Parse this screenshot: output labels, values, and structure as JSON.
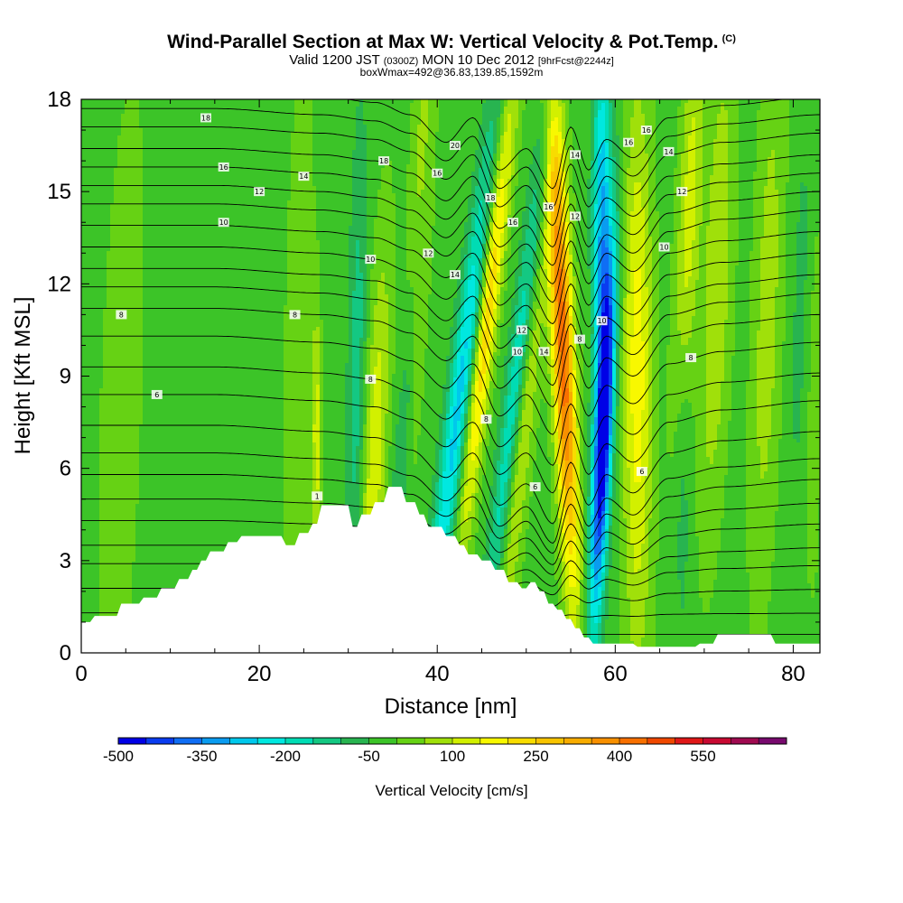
{
  "title": {
    "main": "Wind-Parallel Section at Max W: Vertical Velocity & Pot.Temp.",
    "main_tag": "(C)",
    "valid_prefix": "Valid 1200 JST",
    "valid_utc": "(0300Z)",
    "valid_suffix": "MON 10 Dec 2012",
    "forecast": "[9hrFcst@2244z]",
    "box": "boxWmax=492@36.83,139.85,1592m"
  },
  "chart_data": {
    "type": "heatmap",
    "xlabel": "Distance [nm]",
    "ylabel": "Height [Kft MSL]",
    "xlim": [
      0,
      83
    ],
    "ylim": [
      0,
      18
    ],
    "x_ticks": [
      0,
      20,
      40,
      60,
      80
    ],
    "y_ticks": [
      0,
      3,
      6,
      9,
      12,
      15,
      18
    ],
    "colorbar_label": "Vertical Velocity [cm/s]",
    "colorbar_ticks": [
      -500,
      -350,
      -200,
      -50,
      100,
      250,
      400,
      550
    ],
    "colorbar_min": -500,
    "colorbar_max": 650,
    "colorbar_step": 50,
    "colors": [
      "#0000e6",
      "#0a3cf0",
      "#0f6ef5",
      "#0a9cf0",
      "#00c8ec",
      "#00e8e0",
      "#00dcb4",
      "#14c882",
      "#28b450",
      "#3cc428",
      "#66d214",
      "#a0e00a",
      "#d2f000",
      "#f8f800",
      "#f8dc00",
      "#f8c400",
      "#f8ac00",
      "#f89000",
      "#f87000",
      "#f04800",
      "#e01818",
      "#c80a32",
      "#a00a50",
      "#780a6e"
    ],
    "terrain_profile": [
      [
        0,
        1.0
      ],
      [
        1,
        1.0
      ],
      [
        1.5,
        1.2
      ],
      [
        4,
        1.2
      ],
      [
        4.5,
        1.6
      ],
      [
        6.5,
        1.6
      ],
      [
        7,
        1.8
      ],
      [
        8.5,
        1.8
      ],
      [
        9,
        2.1
      ],
      [
        10.5,
        2.1
      ],
      [
        11,
        2.4
      ],
      [
        12,
        2.4
      ],
      [
        12.5,
        2.7
      ],
      [
        13,
        2.7
      ],
      [
        13.5,
        3.0
      ],
      [
        14,
        3.0
      ],
      [
        14.5,
        3.3
      ],
      [
        16,
        3.3
      ],
      [
        16.5,
        3.6
      ],
      [
        17.5,
        3.6
      ],
      [
        18,
        3.8
      ],
      [
        22.5,
        3.8
      ],
      [
        23,
        3.5
      ],
      [
        24,
        3.5
      ],
      [
        24.5,
        3.9
      ],
      [
        25.5,
        3.9
      ],
      [
        26,
        4.2
      ],
      [
        26.5,
        4.2
      ],
      [
        27,
        4.8
      ],
      [
        30,
        4.8
      ],
      [
        30.5,
        4.1
      ],
      [
        31,
        4.1
      ],
      [
        31.5,
        4.5
      ],
      [
        32.5,
        4.5
      ],
      [
        33,
        4.9
      ],
      [
        34,
        4.9
      ],
      [
        34.5,
        5.4
      ],
      [
        36,
        5.4
      ],
      [
        36.5,
        4.9
      ],
      [
        37.5,
        4.9
      ],
      [
        38,
        4.5
      ],
      [
        38.5,
        4.5
      ],
      [
        39,
        4.1
      ],
      [
        40.5,
        4.1
      ],
      [
        41,
        3.8
      ],
      [
        42,
        3.8
      ],
      [
        42.5,
        3.5
      ],
      [
        43,
        3.5
      ],
      [
        43.5,
        3.2
      ],
      [
        44.5,
        3.2
      ],
      [
        45,
        3.0
      ],
      [
        46,
        3.0
      ],
      [
        46.5,
        2.7
      ],
      [
        47.5,
        2.7
      ],
      [
        48,
        2.3
      ],
      [
        49,
        2.3
      ],
      [
        49.5,
        2.1
      ],
      [
        50,
        2.1
      ],
      [
        50.5,
        2.3
      ],
      [
        51,
        2.3
      ],
      [
        51.5,
        2.0
      ],
      [
        52,
        2.0
      ],
      [
        52.5,
        1.6
      ],
      [
        53,
        1.6
      ],
      [
        53.5,
        1.4
      ],
      [
        54,
        1.4
      ],
      [
        54.5,
        1.1
      ],
      [
        55,
        1.1
      ],
      [
        55.5,
        0.8
      ],
      [
        56,
        0.8
      ],
      [
        56.5,
        0.5
      ],
      [
        57,
        0.5
      ],
      [
        57.5,
        0.3
      ],
      [
        58,
        0.3
      ],
      [
        58.5,
        0.3
      ],
      [
        62,
        0.3
      ],
      [
        62.5,
        0.2
      ],
      [
        69,
        0.2
      ],
      [
        69.5,
        0.3
      ],
      [
        71,
        0.3
      ],
      [
        71.5,
        0.6
      ],
      [
        77.5,
        0.6
      ],
      [
        78,
        0.3
      ],
      [
        83,
        0.3
      ],
      [
        83,
        0
      ],
      [
        0,
        0
      ]
    ],
    "w_field": {
      "background": -20,
      "features": [
        {
          "x0": 3.5,
          "dxdz": 0.12,
          "sigma": 2.2,
          "amp": 60,
          "zc": 8,
          "zw": 10
        },
        {
          "x0": 24.0,
          "dxdz": 0.05,
          "sigma": 1.6,
          "amp": 60,
          "zc": 9,
          "zw": 10
        },
        {
          "x0": 26.5,
          "dxdz": 0.0,
          "sigma": 0.6,
          "amp": 140,
          "zc": 7,
          "zw": 4
        },
        {
          "x0": 27.5,
          "dxdz": 0.0,
          "sigma": 0.6,
          "amp": -30,
          "zc": 11,
          "zw": 6
        },
        {
          "x0": 30.5,
          "dxdz": 0.05,
          "sigma": 1.0,
          "amp": -110,
          "zc": 9,
          "zw": 8
        },
        {
          "x0": 32.0,
          "dxdz": 0.15,
          "sigma": 1.3,
          "amp": 160,
          "zc": 6,
          "zw": 7
        },
        {
          "x0": 34.5,
          "dxdz": 0.25,
          "sigma": 1.0,
          "amp": -120,
          "zc": 9,
          "zw": 9
        },
        {
          "x0": 35.5,
          "dxdz": 0.18,
          "sigma": 1.2,
          "amp": 150,
          "zc": 14,
          "zw": 8
        },
        {
          "x0": 39.0,
          "dxdz": 0.42,
          "sigma": 1.3,
          "amp": -250,
          "zc": 8,
          "zw": 9
        },
        {
          "x0": 41.5,
          "dxdz": 0.38,
          "sigma": 1.1,
          "amp": 260,
          "zc": 11,
          "zw": 8
        },
        {
          "x0": 45.5,
          "dxdz": 0.4,
          "sigma": 1.2,
          "amp": -250,
          "zc": 10,
          "zw": 10
        },
        {
          "x0": 47.0,
          "dxdz": 0.33,
          "sigma": 1.3,
          "amp": 180,
          "zc": 9,
          "zw": 10
        },
        {
          "x0": 55.5,
          "dxdz": -0.14,
          "sigma": 1.2,
          "amp": 460,
          "zc": 10,
          "zw": 8
        },
        {
          "x0": 57.5,
          "dxdz": 0.16,
          "sigma": 1.0,
          "amp": -500,
          "zc": 7,
          "zw": 6
        },
        {
          "x0": 58.5,
          "dxdz": 0.0,
          "sigma": 1.0,
          "amp": -280,
          "zc": 14,
          "zw": 6
        },
        {
          "x0": 62.5,
          "dxdz": 0.0,
          "sigma": 1.6,
          "amp": 200,
          "zc": 9,
          "zw": 9
        },
        {
          "x0": 66.0,
          "dxdz": 0.16,
          "sigma": 1.3,
          "amp": 150,
          "zc": 14,
          "zw": 7
        },
        {
          "x0": 70.0,
          "dxdz": 0.12,
          "sigma": 1.6,
          "amp": 120,
          "zc": 12,
          "zw": 8
        },
        {
          "x0": 76.0,
          "dxdz": 0.1,
          "sigma": 1.6,
          "amp": 100,
          "zc": 11,
          "zw": 9
        },
        {
          "x0": 80.0,
          "dxdz": 0.1,
          "sigma": 1.2,
          "amp": -80,
          "zc": 13,
          "zw": 8
        },
        {
          "x0": 82.0,
          "dxdz": 0.0,
          "sigma": 1.3,
          "amp": 60,
          "zc": 12,
          "zw": 10
        },
        {
          "x0": 67.5,
          "dxdz": 0.0,
          "sigma": 1.0,
          "amp": -60,
          "zc": 6,
          "zw": 6
        }
      ]
    },
    "theta_contours": {
      "base_levels": [
        -1.5,
        -1.1,
        -0.6,
        0.1,
        0.6,
        1.3,
        2.1,
        2.9,
        3.5,
        4.3,
        5.0,
        5.8,
        6.5,
        7.4,
        8.4,
        9.3,
        10.3,
        11.2,
        11.9,
        12.5,
        13.2,
        13.9,
        14.6,
        15.2,
        15.8,
        16.4,
        17.1,
        17.7,
        18.3
      ],
      "wave_displacement": [
        [
          0,
          0.0
        ],
        [
          15,
          0.0
        ],
        [
          27,
          -0.2
        ],
        [
          33,
          -0.4
        ],
        [
          37,
          -0.8
        ],
        [
          41,
          -1.7
        ],
        [
          44,
          -0.9
        ],
        [
          47,
          -2.6
        ],
        [
          50,
          -1.9
        ],
        [
          53,
          -3.2
        ],
        [
          55,
          -1.2
        ],
        [
          57,
          -2.6
        ],
        [
          59,
          -1.6
        ],
        [
          62,
          -2.2
        ],
        [
          66,
          -0.9
        ],
        [
          72,
          -0.5
        ],
        [
          83,
          -0.2
        ]
      ],
      "labels": [
        {
          "text": "18",
          "x": 14,
          "z": 17.4
        },
        {
          "text": "16",
          "x": 16,
          "z": 15.8
        },
        {
          "text": "14",
          "x": 25,
          "z": 15.5
        },
        {
          "text": "12",
          "x": 20,
          "z": 15.0
        },
        {
          "text": "10",
          "x": 16,
          "z": 14.0
        },
        {
          "text": "8",
          "x": 4.5,
          "z": 11.0
        },
        {
          "text": "8",
          "x": 24,
          "z": 11.0
        },
        {
          "text": "6",
          "x": 8.5,
          "z": 8.4
        },
        {
          "text": "18",
          "x": 34,
          "z": 16.0
        },
        {
          "text": "16",
          "x": 40,
          "z": 15.6
        },
        {
          "text": "20",
          "x": 42,
          "z": 16.5
        },
        {
          "text": "18",
          "x": 46,
          "z": 14.8
        },
        {
          "text": "16",
          "x": 48.5,
          "z": 14.0
        },
        {
          "text": "14",
          "x": 42,
          "z": 12.3
        },
        {
          "text": "12",
          "x": 39,
          "z": 13.0
        },
        {
          "text": "10",
          "x": 32.5,
          "z": 12.8
        },
        {
          "text": "8",
          "x": 32.5,
          "z": 8.9
        },
        {
          "text": "12",
          "x": 49.5,
          "z": 10.5
        },
        {
          "text": "10",
          "x": 49.0,
          "z": 9.8
        },
        {
          "text": "8",
          "x": 45.5,
          "z": 7.6
        },
        {
          "text": "6",
          "x": 51,
          "z": 5.4
        },
        {
          "text": "14",
          "x": 52,
          "z": 9.8
        },
        {
          "text": "16",
          "x": 52.5,
          "z": 14.5
        },
        {
          "text": "14",
          "x": 55.5,
          "z": 16.2
        },
        {
          "text": "12",
          "x": 55.5,
          "z": 14.2
        },
        {
          "text": "8",
          "x": 56,
          "z": 10.2
        },
        {
          "text": "10",
          "x": 58.5,
          "z": 10.8
        },
        {
          "text": "16",
          "x": 61.5,
          "z": 16.6
        },
        {
          "text": "16",
          "x": 63.5,
          "z": 17.0
        },
        {
          "text": "14",
          "x": 66,
          "z": 16.3
        },
        {
          "text": "12",
          "x": 67.5,
          "z": 15.0
        },
        {
          "text": "10",
          "x": 65.5,
          "z": 13.2
        },
        {
          "text": "8",
          "x": 68.5,
          "z": 9.6
        },
        {
          "text": "6",
          "x": 63,
          "z": 5.9
        },
        {
          "text": "1",
          "x": 26.5,
          "z": 5.1
        }
      ]
    }
  }
}
